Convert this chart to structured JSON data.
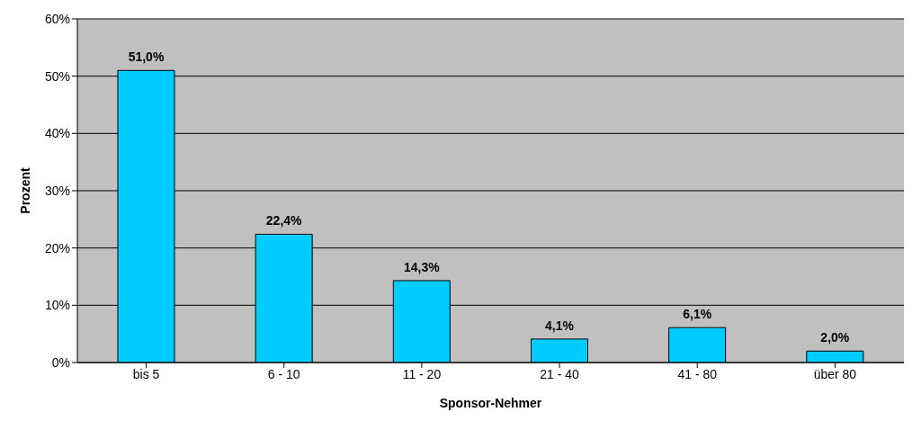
{
  "chart_data": {
    "type": "bar",
    "xlabel": "Sponsor-Nehmer",
    "ylabel": "Prozent",
    "categories": [
      "bis 5",
      "6 - 10",
      "11 - 20",
      "21 - 40",
      "41 - 80",
      "über 80"
    ],
    "values": [
      51.0,
      22.4,
      14.3,
      4.1,
      6.1,
      2.0
    ],
    "value_labels": [
      "51,0%",
      "22,4%",
      "14,3%",
      "4,1%",
      "6,1%",
      "2,0%"
    ],
    "color": "#00ccff",
    "ylim": [
      0,
      60
    ],
    "yticks": [
      {
        "value": 0,
        "label": "0%"
      },
      {
        "value": 10,
        "label": "10%"
      },
      {
        "value": 20,
        "label": "20%"
      },
      {
        "value": 30,
        "label": "30%"
      },
      {
        "value": 40,
        "label": "40%"
      },
      {
        "value": 50,
        "label": "50%"
      },
      {
        "value": 60,
        "label": "60%"
      }
    ],
    "grid": "y"
  }
}
